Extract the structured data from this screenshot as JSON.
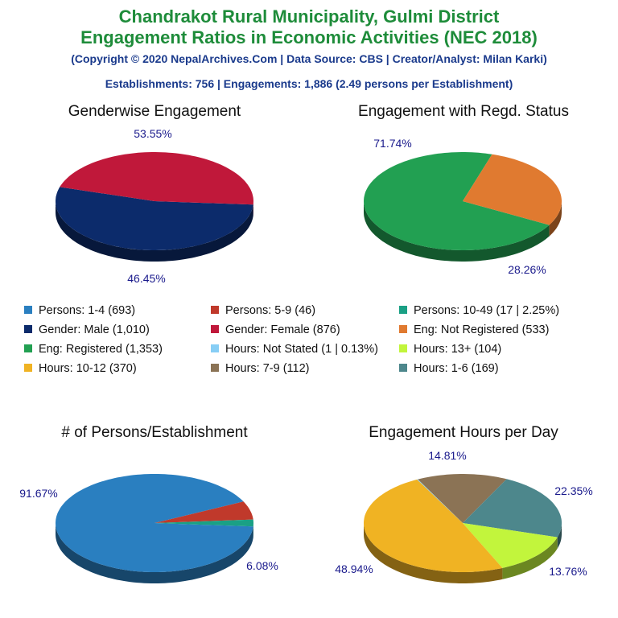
{
  "header": {
    "title_line1": "Chandrakot Rural Municipality, Gulmi District",
    "title_line2": "Engagement Ratios in Economic Activities (NEC 2018)",
    "copyright": "(Copyright © 2020 NepalArchives.Com | Data Source: CBS | Creator/Analyst: Milan Karki)",
    "summary": "Establishments: 756 | Engagements: 1,886 (2.49 persons per Establishment)"
  },
  "legend": [
    {
      "label": "Persons: 1-4 (693)",
      "color": "#2a7fc0"
    },
    {
      "label": "Persons: 5-9 (46)",
      "color": "#c0392b"
    },
    {
      "label": "Persons: 10-49 (17 | 2.25%)",
      "color": "#1aa085"
    },
    {
      "label": "Gender: Male (1,010)",
      "color": "#0c2b6b"
    },
    {
      "label": "Gender: Female (876)",
      "color": "#c0183a"
    },
    {
      "label": "Eng: Not Registered (533)",
      "color": "#e07a30"
    },
    {
      "label": "Eng: Registered (1,353)",
      "color": "#22a052"
    },
    {
      "label": "Hours: Not Stated (1 | 0.13%)",
      "color": "#87cef5"
    },
    {
      "label": "Hours: 13+ (104)",
      "color": "#c2f53c"
    },
    {
      "label": "Hours: 10-12 (370)",
      "color": "#f0b323"
    },
    {
      "label": "Hours: 7-9 (112)",
      "color": "#8b7355"
    },
    {
      "label": "Hours: 1-6 (169)",
      "color": "#4d878c"
    }
  ],
  "chart_data": [
    {
      "type": "pie",
      "title": "Genderwise Engagement",
      "slices": [
        {
          "name": "Male",
          "value": 1010,
          "pct_label": "53.55%",
          "color": "#0c2b6b"
        },
        {
          "name": "Female",
          "value": 876,
          "pct_label": "46.45%",
          "color": "#c0183a"
        }
      ]
    },
    {
      "type": "pie",
      "title": "Engagement with Regd. Status",
      "slices": [
        {
          "name": "Registered",
          "value": 1353,
          "pct_label": "71.74%",
          "color": "#22a052"
        },
        {
          "name": "Not Registered",
          "value": 533,
          "pct_label": "28.26%",
          "color": "#e07a30"
        }
      ]
    },
    {
      "type": "pie",
      "title": "# of Persons/Establishment",
      "slices": [
        {
          "name": "1-4",
          "value": 693,
          "pct_label": "91.67%",
          "color": "#2a7fc0"
        },
        {
          "name": "5-9",
          "value": 46,
          "pct_label": "6.08%",
          "color": "#c0392b"
        },
        {
          "name": "10-49",
          "value": 17,
          "pct_label": "",
          "color": "#1aa085"
        }
      ]
    },
    {
      "type": "pie",
      "title": "Engagement Hours per Day",
      "slices": [
        {
          "name": "7-9",
          "value": 112,
          "pct_label": "14.81%",
          "color": "#8b7355"
        },
        {
          "name": "1-6",
          "value": 169,
          "pct_label": "22.35%",
          "color": "#4d878c"
        },
        {
          "name": "13+",
          "value": 104,
          "pct_label": "13.76%",
          "color": "#c2f53c"
        },
        {
          "name": "10-12",
          "value": 370,
          "pct_label": "48.94%",
          "color": "#f0b323"
        },
        {
          "name": "Not Stated",
          "value": 1,
          "pct_label": "",
          "color": "#87cef5"
        }
      ]
    }
  ]
}
